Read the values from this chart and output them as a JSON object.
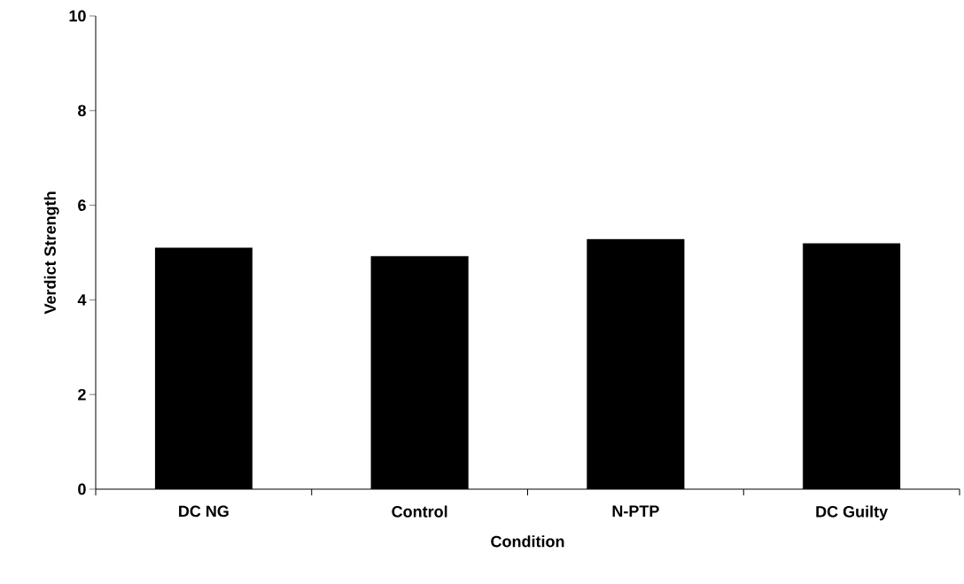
{
  "chart_data": {
    "type": "bar",
    "xlabel": "Condition",
    "ylabel": "Verdict Strength",
    "categories": [
      "DC NG",
      "Control",
      "N-PTP",
      "DC Guilty"
    ],
    "values": [
      5.1,
      4.92,
      5.28,
      5.19
    ],
    "color": "#000000",
    "ylim": [
      0,
      10
    ],
    "yticks": [
      0,
      2,
      4,
      6,
      8,
      10
    ],
    "grid": false
  }
}
